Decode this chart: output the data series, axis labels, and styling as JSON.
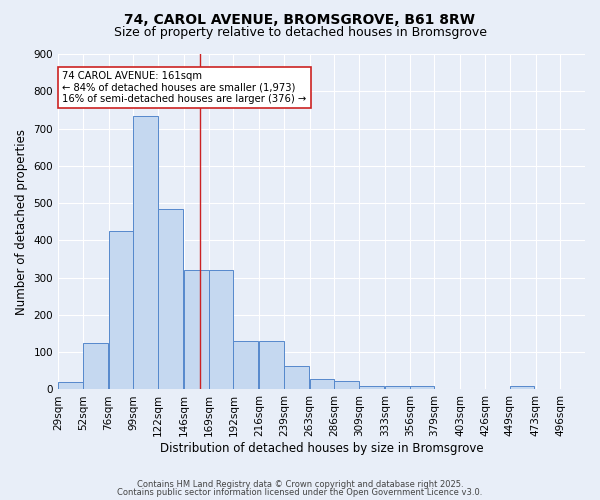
{
  "title": "74, CAROL AVENUE, BROMSGROVE, B61 8RW",
  "subtitle": "Size of property relative to detached houses in Bromsgrove",
  "xlabel": "Distribution of detached houses by size in Bromsgrove",
  "ylabel": "Number of detached properties",
  "bar_values": [
    20,
    125,
    425,
    735,
    485,
    320,
    320,
    130,
    130,
    63,
    28,
    22,
    10,
    8,
    8,
    0,
    0,
    0,
    8
  ],
  "bar_left_edges": [
    29,
    52,
    76,
    99,
    122,
    146,
    169,
    192,
    216,
    239,
    263,
    286,
    309,
    333,
    356,
    379,
    403,
    426,
    449
  ],
  "bin_width": 23,
  "tick_labels": [
    "29sqm",
    "52sqm",
    "76sqm",
    "99sqm",
    "122sqm",
    "146sqm",
    "169sqm",
    "192sqm",
    "216sqm",
    "239sqm",
    "263sqm",
    "286sqm",
    "309sqm",
    "333sqm",
    "356sqm",
    "379sqm",
    "403sqm",
    "426sqm",
    "449sqm",
    "473sqm",
    "496sqm"
  ],
  "tick_positions": [
    29,
    52,
    76,
    99,
    122,
    146,
    169,
    192,
    216,
    239,
    263,
    286,
    309,
    333,
    356,
    379,
    403,
    426,
    449,
    473,
    496
  ],
  "ylim": [
    0,
    900
  ],
  "yticks": [
    0,
    100,
    200,
    300,
    400,
    500,
    600,
    700,
    800,
    900
  ],
  "bar_color": "#c5d8f0",
  "bar_edge_color": "#5588cc",
  "property_size": 161,
  "vline_color": "#cc2222",
  "annotation_text": "74 CAROL AVENUE: 161sqm\n← 84% of detached houses are smaller (1,973)\n16% of semi-detached houses are larger (376) →",
  "annotation_box_color": "#ffffff",
  "annotation_box_edge": "#cc2222",
  "background_color": "#e8eef8",
  "plot_bg_color": "#e8eef8",
  "footer_line1": "Contains HM Land Registry data © Crown copyright and database right 2025.",
  "footer_line2": "Contains public sector information licensed under the Open Government Licence v3.0.",
  "grid_color": "#ffffff",
  "title_fontsize": 10,
  "subtitle_fontsize": 9,
  "axis_label_fontsize": 8.5,
  "tick_fontsize": 7.5,
  "footer_fontsize": 6.0
}
